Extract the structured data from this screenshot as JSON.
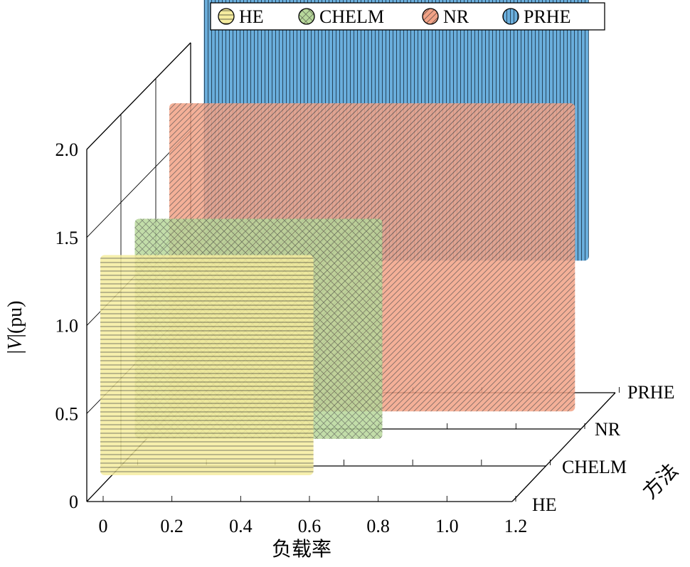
{
  "chart_data": {
    "type": "3d-bar",
    "legend": {
      "placement": "top",
      "entries": [
        {
          "name": "HE",
          "color": "#f5ec9e",
          "pattern": "horizontal-lines",
          "icon": "hatched-circle"
        },
        {
          "name": "CHELM",
          "color": "#b7d79a",
          "pattern": "diagonal-cross",
          "icon": "hatched-circle"
        },
        {
          "name": "NR",
          "color": "#f2a286",
          "pattern": "diagonal-lines",
          "icon": "hatched-circle"
        },
        {
          "name": "PRHE",
          "color": "#6aaedc",
          "pattern": "vertical-lines",
          "icon": "hatched-circle"
        }
      ]
    },
    "xlabel": "负载率",
    "ylabel": "方法",
    "zlabel_italic": "V",
    "zlabel_rest": "(pu)",
    "x_ticks": [
      "0",
      "0.2",
      "0.4",
      "0.6",
      "0.8",
      "1.0",
      "1.2"
    ],
    "y_ticks": [
      "HE",
      "CHELM",
      "NR",
      "PRHE"
    ],
    "z_ticks": [
      "0",
      "0.5",
      "1.0",
      "1.5",
      "2.0"
    ],
    "xlim": [
      0,
      1.2
    ],
    "zlim": [
      0,
      2.0
    ],
    "grid": true,
    "series": [
      {
        "name": "HE",
        "x_range": [
          0,
          0.62
        ],
        "v_range": [
          0.15,
          1.4
        ]
      },
      {
        "name": "CHELM",
        "x_range": [
          0,
          0.72
        ],
        "v_range": [
          0.15,
          1.4
        ]
      },
      {
        "name": "NR",
        "x_range": [
          0,
          1.18
        ],
        "v_range": [
          0.1,
          1.85
        ]
      },
      {
        "name": "PRHE",
        "x_range": [
          0,
          1.12
        ],
        "v_range": [
          0.75,
          2.5
        ]
      }
    ]
  }
}
